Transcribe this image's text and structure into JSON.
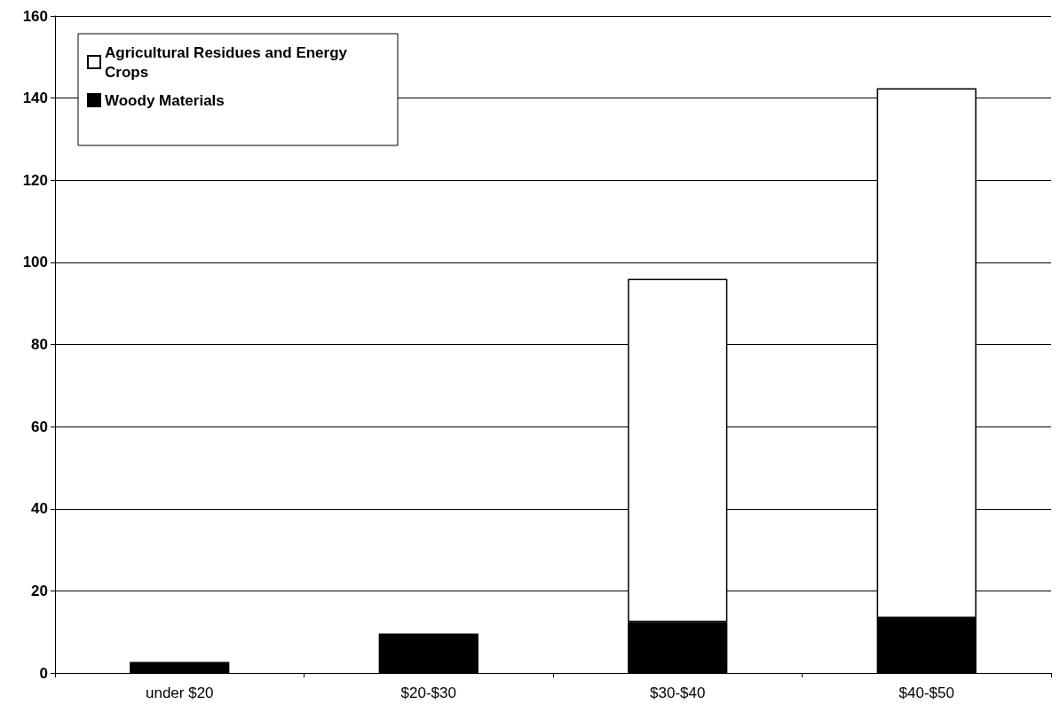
{
  "chart_data": {
    "type": "bar",
    "stacked": true,
    "categories": [
      "under $20",
      "$20-$30",
      "$30-$40",
      "$40-$50"
    ],
    "series": [
      {
        "name": "Woody Materials",
        "color": "#000000",
        "values": [
          2.7,
          9.6,
          12.4,
          13.4
        ]
      },
      {
        "name": "Agricultural Residues and Energy Crops",
        "color": "#ffffff",
        "values": [
          null,
          null,
          83.6,
          129
        ]
      }
    ],
    "ylim": [
      0,
      160
    ],
    "yticks": [
      0,
      20,
      40,
      60,
      80,
      100,
      120,
      140,
      160
    ],
    "grid": "y",
    "legend": "top left"
  }
}
